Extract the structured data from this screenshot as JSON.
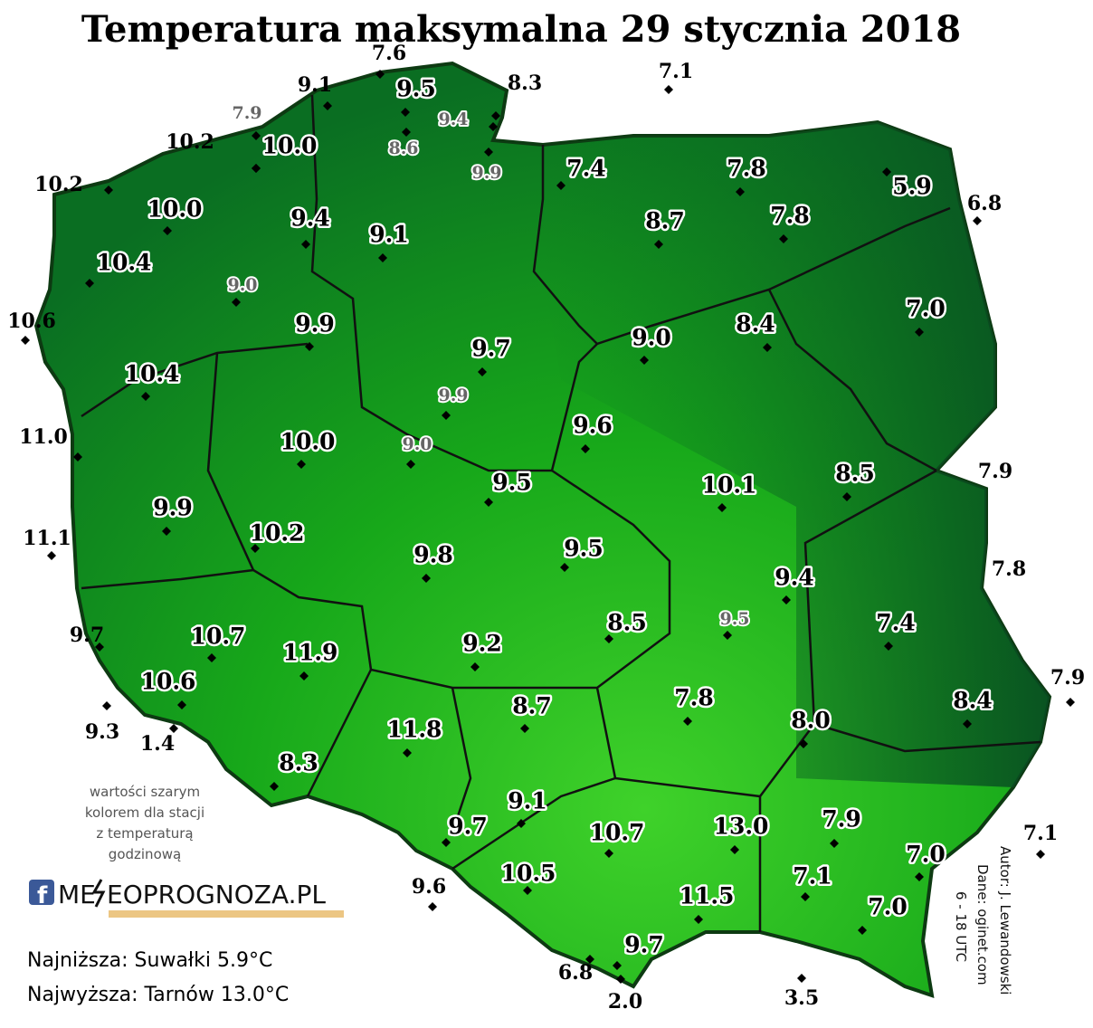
{
  "title": "Temperatura maksymalna 29 stycznia 2018",
  "stations": [
    "9.5",
    "10.0",
    "7.4",
    "7.8",
    "5.9",
    "10.0",
    "9.4",
    "8.7",
    "7.8",
    "9.1",
    "10.4",
    "7.0",
    "9.9",
    "9.0",
    "8.4",
    "9.7",
    "10.4",
    "9.6",
    "10.0",
    "10.1",
    "8.5",
    "9.5",
    "9.9",
    "10.2",
    "9.8",
    "9.5",
    "9.4",
    "7.4",
    "8.5",
    "10.7",
    "9.2",
    "11.9",
    "10.6",
    "7.8",
    "8.4",
    "8.7",
    "8.0",
    "11.8",
    "8.3",
    "9.1",
    "7.9",
    "9.7",
    "10.7",
    "13.0",
    "7.0",
    "10.5",
    "7.1",
    "11.5",
    "7.0",
    "9.7"
  ],
  "hourly_stations": [
    "7.9",
    "9.4",
    "8.6",
    "9.9",
    "9.0",
    "9.9",
    "9.0",
    "9.5"
  ],
  "border_stations": [
    "7.6",
    "9.1",
    "8.3",
    "7.1",
    "10.2",
    "10.2",
    "10.6",
    "11.0",
    "11.1",
    "9.7",
    "9.3",
    "1.4",
    "9.6",
    "6.8",
    "2.0",
    "3.5",
    "7.1",
    "7.9",
    "7.8",
    "7.9",
    "6.8"
  ],
  "note": [
    "wartości szarym",
    "kolorem dla stacji",
    "z temperaturą",
    "godzinową"
  ],
  "logo": {
    "left": "ME",
    "right": "EOPROGNOZA.PL"
  },
  "summary": [
    "Najniższa: Suwałki 5.9°C",
    "Najwyższa: Tarnów 13.0°C"
  ],
  "credits": [
    "Autor: J. Lewandowski",
    "Dane: oginet.com",
    "6 - 18 UTC"
  ]
}
